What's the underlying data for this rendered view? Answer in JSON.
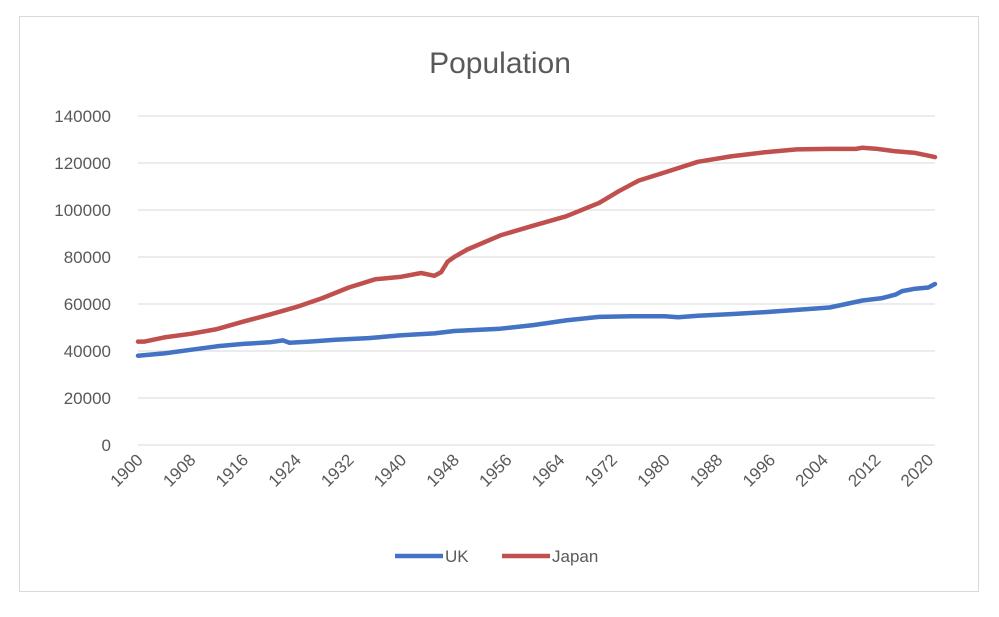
{
  "chart_data": {
    "type": "line",
    "title": "Population",
    "xlabel": "",
    "ylabel": "",
    "xlim": [
      1900,
      2021
    ],
    "ylim": [
      0,
      140000
    ],
    "yticks": [
      0,
      20000,
      40000,
      60000,
      80000,
      100000,
      120000,
      140000
    ],
    "xticks": [
      1900,
      1908,
      1916,
      1924,
      1932,
      1940,
      1948,
      1956,
      1964,
      1972,
      1980,
      1988,
      1996,
      2004,
      2012,
      2020
    ],
    "grid": "horizontal",
    "legend_position": "bottom",
    "series": [
      {
        "name": "UK",
        "color": "#4472C4",
        "x": [
          1900,
          1904,
          1908,
          1912,
          1916,
          1920,
          1922,
          1923,
          1926,
          1930,
          1935,
          1940,
          1945,
          1948,
          1955,
          1960,
          1965,
          1970,
          1975,
          1980,
          1982,
          1985,
          1990,
          1995,
          2000,
          2005,
          2010,
          2013,
          2015,
          2016,
          2018,
          2020,
          2021
        ],
        "y": [
          38000,
          39000,
          40500,
          42000,
          43000,
          43700,
          44500,
          43500,
          44000,
          44800,
          45500,
          46700,
          47500,
          48500,
          49500,
          51000,
          53000,
          54500,
          54800,
          54800,
          54400,
          55000,
          55700,
          56500,
          57500,
          58500,
          61500,
          62500,
          64000,
          65500,
          66500,
          67000,
          68500
        ]
      },
      {
        "name": "Japan",
        "color": "#C0504D",
        "x": [
          1900,
          1901,
          1904,
          1908,
          1912,
          1916,
          1920,
          1924,
          1928,
          1932,
          1936,
          1940,
          1943,
          1945,
          1946,
          1947,
          1948,
          1950,
          1955,
          1960,
          1965,
          1970,
          1973,
          1976,
          1980,
          1985,
          1990,
          1995,
          2000,
          2005,
          2009,
          2010,
          2012,
          2015,
          2018,
          2021
        ],
        "y": [
          44000,
          44000,
          45800,
          47300,
          49300,
          52500,
          55500,
          58700,
          62500,
          67000,
          70500,
          71600,
          73200,
          72000,
          73500,
          78000,
          80000,
          83200,
          89200,
          93300,
          97300,
          103000,
          108000,
          112500,
          116000,
          120500,
          122800,
          124500,
          125800,
          126000,
          126000,
          126500,
          126100,
          125000,
          124300,
          122500
        ]
      }
    ]
  }
}
